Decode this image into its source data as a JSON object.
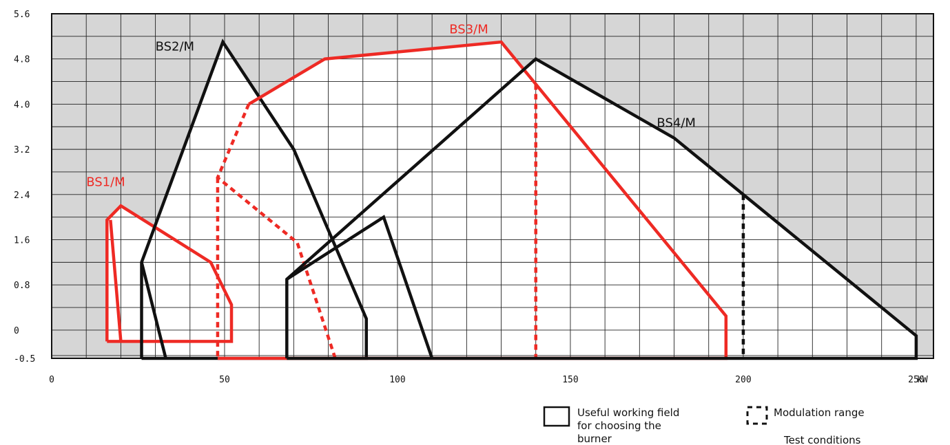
{
  "chart_data": {
    "type": "line",
    "xlabel": "kW",
    "ylabel": "",
    "xlim": [
      0,
      255
    ],
    "ylim": [
      -0.5,
      5.6
    ],
    "x_ticks": [
      "0",
      "50",
      "100",
      "150",
      "200",
      "250"
    ],
    "y_ticks": [
      "5.6",
      "4.8",
      "4.0",
      "3.2",
      "2.4",
      "1.6",
      "0.8",
      "0",
      "-0.5"
    ],
    "grid": true,
    "colors": {
      "red": "#ee2a24",
      "black": "#111111",
      "shade": "#d6d6d6",
      "grid": "#222222"
    },
    "series": [
      {
        "name": "BS1/M",
        "color": "#ee2a24",
        "label_at": [
          10,
          2.55
        ],
        "solid": [
          [
            [
              16,
              -0.2
            ],
            [
              16,
              1.95
            ],
            [
              20,
              2.2
            ],
            [
              46,
              1.2
            ],
            [
              52,
              0.45
            ],
            [
              52,
              -0.2
            ],
            [
              16,
              -0.2
            ]
          ],
          [
            [
              17,
              1.95
            ],
            [
              20,
              -0.2
            ]
          ]
        ],
        "dashed": []
      },
      {
        "name": "BS2/M",
        "color": "#111111",
        "label_at": [
          30,
          4.95
        ],
        "solid": [
          [
            [
              26,
              -0.5
            ],
            [
              26,
              1.2
            ],
            [
              49.5,
              5.1
            ],
            [
              70,
              3.2
            ],
            [
              91,
              0.2
            ],
            [
              91,
              -0.5
            ],
            [
              26,
              -0.5
            ]
          ],
          [
            [
              26,
              1.2
            ],
            [
              33,
              -0.5
            ]
          ]
        ],
        "dashed": []
      },
      {
        "name": "BS3/M",
        "color": "#ee2a24",
        "label_at": [
          115,
          5.25
        ],
        "solid": [
          [
            [
              48,
              -0.5
            ],
            [
              195,
              -0.5
            ],
            [
              195,
              0.25
            ],
            [
              130,
              5.1
            ],
            [
              79,
              4.8
            ],
            [
              57,
              4.0
            ]
          ]
        ],
        "dashed": [
          [
            [
              57,
              4.0
            ],
            [
              48,
              2.7
            ],
            [
              71,
              1.55
            ],
            [
              82,
              -0.5
            ]
          ],
          [
            [
              48,
              2.7
            ],
            [
              48,
              -0.5
            ]
          ],
          [
            [
              140,
              4.35
            ],
            [
              140,
              -0.5
            ]
          ]
        ]
      },
      {
        "name": "BS4/M",
        "color": "#111111",
        "label_at": [
          175,
          3.6
        ],
        "solid": [
          [
            [
              68,
              -0.5
            ],
            [
              250,
              -0.5
            ],
            [
              250,
              -0.1
            ],
            [
              180,
              3.4
            ],
            [
              140,
              4.8
            ],
            [
              68,
              0.9
            ],
            [
              68,
              -0.5
            ]
          ],
          [
            [
              68,
              0.9
            ],
            [
              96,
              2.0
            ],
            [
              110,
              -0.5
            ]
          ]
        ],
        "dashed": [
          [
            [
              200,
              2.4
            ],
            [
              200,
              -0.5
            ]
          ]
        ]
      }
    ],
    "legend": {
      "placement": "bottom-right",
      "items": [
        {
          "symbol": "solid-box",
          "label_lines": [
            "Useful working field",
            "for choosing the",
            "burner"
          ]
        },
        {
          "symbol": "dashed-box",
          "label_lines": [
            "Modulation range"
          ]
        }
      ],
      "note": "Test conditions"
    }
  }
}
